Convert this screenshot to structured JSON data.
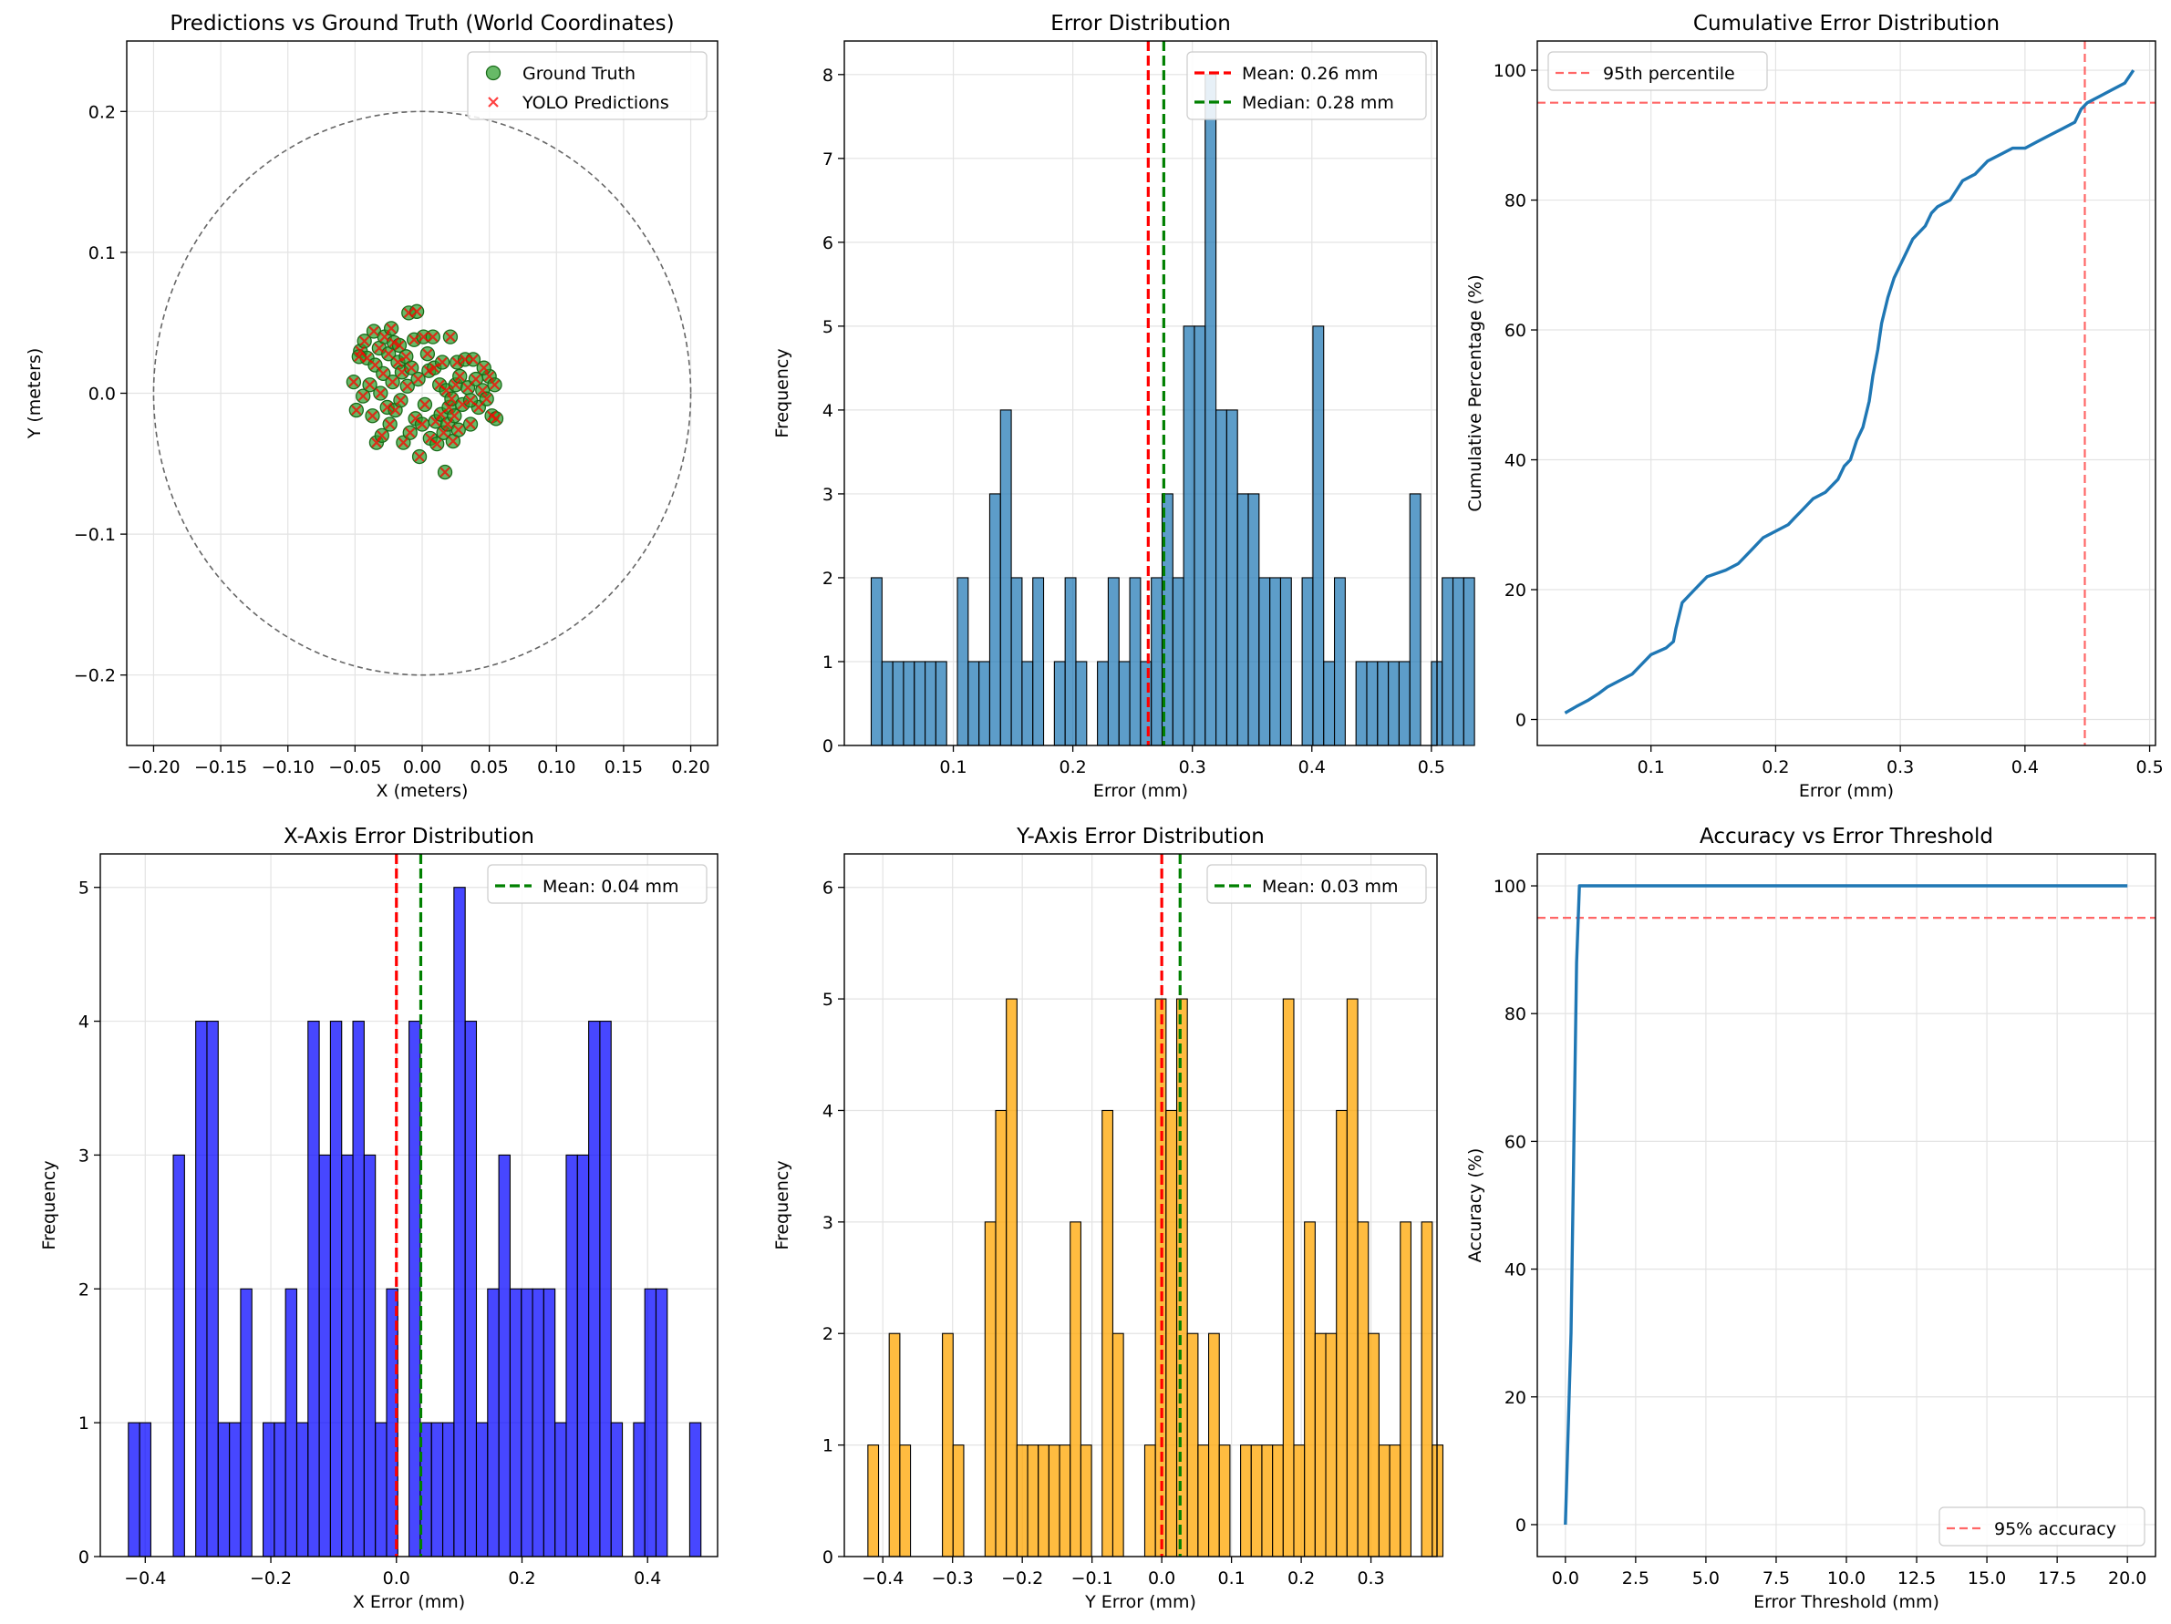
{
  "colors": {
    "gt": "#2ca02c",
    "pred": "#ff0000",
    "hist_err": "#1f77b4",
    "hist_x": "#0000ff",
    "hist_y": "#ffa500",
    "line": "#1f77b4",
    "mean": "#ff0000",
    "median": "#008000",
    "ref": "#ff6666",
    "circle": "#666666"
  },
  "chart_data": [
    {
      "type": "scatter",
      "title": "Predictions vs Ground Truth (World Coordinates)",
      "xlabel": "X (meters)",
      "ylabel": "Y (meters)",
      "xlim": [
        -0.22,
        0.22
      ],
      "ylim": [
        -0.25,
        0.25
      ],
      "xticks": [
        -0.2,
        -0.15,
        -0.1,
        -0.05,
        0.0,
        0.05,
        0.1,
        0.15,
        0.2
      ],
      "xtick_labels": [
        "−0.20",
        "−0.15",
        "−0.10",
        "−0.05",
        "0.00",
        "0.05",
        "0.10",
        "0.15",
        "0.20"
      ],
      "yticks": [
        -0.2,
        -0.1,
        0.0,
        0.1,
        0.2
      ],
      "ytick_labels": [
        "−0.2",
        "−0.1",
        "0.0",
        "0.1",
        "0.2"
      ],
      "grid": true,
      "legend_position": "upper right",
      "circle_radius": 0.2,
      "series": [
        {
          "name": "Ground Truth",
          "marker": "circle"
        },
        {
          "name": "YOLO Predictions",
          "marker": "x"
        }
      ],
      "points": [
        [
          -0.051,
          0.008
        ],
        [
          -0.049,
          -0.012
        ],
        [
          -0.046,
          0.03
        ],
        [
          -0.044,
          -0.002
        ],
        [
          -0.043,
          0.037
        ],
        [
          -0.041,
          0.025
        ],
        [
          -0.039,
          0.006
        ],
        [
          -0.037,
          -0.016
        ],
        [
          -0.036,
          0.044
        ],
        [
          -0.035,
          0.02
        ],
        [
          -0.034,
          -0.035
        ],
        [
          -0.032,
          0.032
        ],
        [
          -0.031,
          0.0
        ],
        [
          -0.03,
          -0.03
        ],
        [
          -0.029,
          0.014
        ],
        [
          -0.028,
          0.04
        ],
        [
          -0.026,
          -0.01
        ],
        [
          -0.025,
          0.028
        ],
        [
          -0.024,
          -0.022
        ],
        [
          -0.022,
          0.008
        ],
        [
          -0.021,
          0.036
        ],
        [
          -0.02,
          -0.012
        ],
        [
          -0.018,
          0.022
        ],
        [
          -0.017,
          0.034
        ],
        [
          -0.016,
          -0.005
        ],
        [
          -0.015,
          0.015
        ],
        [
          -0.014,
          -0.035
        ],
        [
          -0.012,
          0.026
        ],
        [
          -0.011,
          0.005
        ],
        [
          -0.01,
          0.057
        ],
        [
          -0.009,
          -0.028
        ],
        [
          -0.008,
          0.018
        ],
        [
          -0.006,
          0.038
        ],
        [
          -0.005,
          -0.018
        ],
        [
          -0.004,
          0.058
        ],
        [
          -0.003,
          0.01
        ],
        [
          -0.002,
          -0.045
        ],
        [
          0.0,
          -0.022
        ],
        [
          0.001,
          0.04
        ],
        [
          0.002,
          -0.008
        ],
        [
          0.004,
          0.028
        ],
        [
          0.005,
          0.016
        ],
        [
          0.006,
          -0.032
        ],
        [
          0.008,
          0.04
        ],
        [
          0.009,
          0.018
        ],
        [
          0.01,
          -0.02
        ],
        [
          0.011,
          -0.036
        ],
        [
          0.013,
          0.006
        ],
        [
          0.014,
          -0.015
        ],
        [
          0.015,
          0.022
        ],
        [
          0.016,
          -0.028
        ],
        [
          0.017,
          -0.056
        ],
        [
          0.018,
          0.002
        ],
        [
          0.019,
          -0.022
        ],
        [
          0.02,
          -0.01
        ],
        [
          0.021,
          0.04
        ],
        [
          0.022,
          -0.004
        ],
        [
          0.023,
          -0.034
        ],
        [
          0.024,
          -0.016
        ],
        [
          0.025,
          0.006
        ],
        [
          0.026,
          0.022
        ],
        [
          0.027,
          -0.026
        ],
        [
          0.028,
          0.012
        ],
        [
          0.03,
          -0.008
        ],
        [
          0.032,
          0.024
        ],
        [
          0.034,
          0.004
        ],
        [
          0.036,
          -0.022
        ],
        [
          0.038,
          0.024
        ],
        [
          0.04,
          0.01
        ],
        [
          0.042,
          -0.01
        ],
        [
          0.045,
          0.002
        ],
        [
          0.048,
          -0.004
        ],
        [
          0.05,
          0.012
        ],
        [
          0.052,
          -0.016
        ],
        [
          0.054,
          0.006
        ],
        [
          0.055,
          -0.018
        ],
        [
          0.046,
          0.018
        ],
        [
          -0.047,
          0.026
        ],
        [
          -0.023,
          0.046
        ],
        [
          0.036,
          -0.005
        ]
      ]
    },
    {
      "type": "bar",
      "title": "Error Distribution",
      "xlabel": "Error (mm)",
      "ylabel": "Frequency",
      "xlim": [
        0.0088,
        0.5047
      ],
      "ylim": [
        0,
        8.4
      ],
      "xticks": [
        0.1,
        0.2,
        0.3,
        0.4,
        0.5
      ],
      "xtick_labels": [
        "0.1",
        "0.2",
        "0.3",
        "0.4",
        "0.5"
      ],
      "yticks": [
        0,
        1,
        2,
        3,
        4,
        5,
        6,
        7,
        8
      ],
      "ytick_labels": [
        "0",
        "1",
        "2",
        "3",
        "4",
        "5",
        "6",
        "7",
        "8"
      ],
      "grid": true,
      "legend_position": "upper right",
      "bin_start": 0.0313,
      "bin_width": 0.009014,
      "counts": [
        2,
        1,
        1,
        1,
        1,
        1,
        1,
        0,
        2,
        1,
        1,
        3,
        4,
        2,
        1,
        2,
        0,
        1,
        2,
        1,
        0,
        1,
        2,
        1,
        2,
        1,
        2,
        3,
        2,
        5,
        5,
        8,
        4,
        4,
        3,
        3,
        2,
        2,
        2,
        0,
        2,
        5,
        1,
        2,
        0,
        1,
        1,
        1,
        1,
        1,
        3,
        0,
        1,
        2,
        2,
        2
      ],
      "vlines": [
        {
          "x": 0.2631,
          "label": "Mean: 0.26 mm",
          "color": "mean"
        },
        {
          "x": 0.2761,
          "label": "Median: 0.28 mm",
          "color": "median"
        }
      ]
    },
    {
      "type": "line",
      "title": "Cumulative Error Distribution",
      "xlabel": "Error (mm)",
      "ylabel": "Cumulative Percentage (%)",
      "xlim": [
        0.0088,
        0.5047
      ],
      "ylim": [
        -4,
        104.5
      ],
      "xticks": [
        0.1,
        0.2,
        0.3,
        0.4,
        0.5
      ],
      "xtick_labels": [
        "0.1",
        "0.2",
        "0.3",
        "0.4",
        "0.5"
      ],
      "yticks": [
        0,
        20,
        40,
        60,
        80,
        100
      ],
      "ytick_labels": [
        "0",
        "20",
        "40",
        "60",
        "80",
        "100"
      ],
      "grid": true,
      "legend_position": "upper left",
      "series": [
        {
          "x": [
            0.031,
            0.04,
            0.05,
            0.058,
            0.065,
            0.075,
            0.085,
            0.09,
            0.1,
            0.112,
            0.118,
            0.12,
            0.125,
            0.135,
            0.145,
            0.16,
            0.17,
            0.18,
            0.19,
            0.2,
            0.21,
            0.215,
            0.22,
            0.23,
            0.24,
            0.25,
            0.255,
            0.26,
            0.265,
            0.27,
            0.275,
            0.278,
            0.282,
            0.285,
            0.29,
            0.295,
            0.3,
            0.305,
            0.31,
            0.32,
            0.325,
            0.33,
            0.34,
            0.35,
            0.36,
            0.365,
            0.37,
            0.38,
            0.39,
            0.4,
            0.41,
            0.42,
            0.43,
            0.44,
            0.445,
            0.45,
            0.46,
            0.47,
            0.48,
            0.487
          ],
          "y": [
            1,
            2,
            3,
            4,
            5,
            6,
            7,
            8,
            10,
            11,
            12,
            14,
            18,
            20,
            22,
            23,
            24,
            26,
            28,
            29,
            30,
            31,
            32,
            34,
            35,
            37,
            39,
            40,
            43,
            45,
            49,
            53,
            57,
            61,
            65,
            68,
            70,
            72,
            74,
            76,
            78,
            79,
            80,
            83,
            84,
            85,
            86,
            87,
            88,
            88,
            89,
            90,
            91,
            92,
            94,
            95,
            96,
            97,
            98,
            100
          ]
        }
      ],
      "hlines": [
        {
          "y": 95,
          "label": "95th percentile"
        }
      ],
      "vlines": [
        {
          "x": 0.448
        }
      ]
    },
    {
      "type": "bar",
      "title": "X-Axis Error Distribution",
      "xlabel": "X Error (mm)",
      "ylabel": "Frequency",
      "xlim": [
        -0.4716,
        0.5115
      ],
      "ylim": [
        0,
        5.25
      ],
      "xticks": [
        -0.4,
        -0.2,
        0.0,
        0.2,
        0.4
      ],
      "xtick_labels": [
        "−0.4",
        "−0.2",
        "0.0",
        "0.2",
        "0.4"
      ],
      "yticks": [
        0,
        1,
        2,
        3,
        4,
        5
      ],
      "ytick_labels": [
        "0",
        "1",
        "2",
        "3",
        "4",
        "5"
      ],
      "grid": true,
      "legend_position": "upper right",
      "bin_start": -0.4269,
      "bin_width": 0.01788,
      "counts": [
        1,
        1,
        0,
        0,
        3,
        0,
        4,
        4,
        1,
        1,
        2,
        0,
        1,
        1,
        2,
        1,
        4,
        3,
        4,
        3,
        4,
        3,
        1,
        2,
        0,
        4,
        1,
        1,
        1,
        5,
        4,
        1,
        2,
        3,
        2,
        2,
        2,
        2,
        1,
        3,
        3,
        4,
        4,
        1,
        0,
        1,
        2,
        2,
        0,
        0,
        1
      ],
      "vlines": [
        {
          "x": 0.0,
          "color": "mean"
        },
        {
          "x": 0.0388,
          "label": "Mean: 0.04 mm",
          "color": "median"
        }
      ]
    },
    {
      "type": "bar",
      "title": "Y-Axis Error Distribution",
      "xlabel": "Y Error (mm)",
      "ylabel": "Frequency",
      "xlim": [
        -0.4552,
        0.3947
      ],
      "ylim": [
        0,
        6.3
      ],
      "xticks": [
        -0.4,
        -0.3,
        -0.2,
        -0.1,
        0.0,
        0.1,
        0.2,
        0.3
      ],
      "xtick_labels": [
        "−0.4",
        "−0.3",
        "−0.2",
        "−0.1",
        "0.0",
        "0.1",
        "0.2",
        "0.3"
      ],
      "yticks": [
        0,
        1,
        2,
        3,
        4,
        5,
        6
      ],
      "ytick_labels": [
        "0",
        "1",
        "2",
        "3",
        "4",
        "5",
        "6"
      ],
      "grid": true,
      "legend_position": "upper right",
      "bin_start": -0.4214,
      "bin_width": 0.01527,
      "counts": [
        1,
        0,
        2,
        1,
        0,
        0,
        0,
        2,
        1,
        0,
        0,
        3,
        4,
        5,
        1,
        1,
        1,
        1,
        1,
        3,
        1,
        0,
        4,
        2,
        0,
        0,
        1,
        5,
        4,
        5,
        2,
        1,
        2,
        1,
        0,
        1,
        1,
        1,
        1,
        5,
        1,
        3,
        2,
        2,
        4,
        5,
        3,
        2,
        1,
        1,
        3,
        0,
        3,
        1
      ],
      "vlines": [
        {
          "x": 0.0,
          "color": "mean"
        },
        {
          "x": 0.0263,
          "label": "Mean: 0.03 mm",
          "color": "median"
        }
      ]
    },
    {
      "type": "line",
      "title": "Accuracy vs Error Threshold",
      "xlabel": "Error Threshold (mm)",
      "ylabel": "Accuracy (%)",
      "xlim": [
        -1.0,
        21.0
      ],
      "ylim": [
        -5,
        105
      ],
      "xticks": [
        0.0,
        2.5,
        5.0,
        7.5,
        10.0,
        12.5,
        15.0,
        17.5,
        20.0
      ],
      "xtick_labels": [
        "0.0",
        "2.5",
        "5.0",
        "7.5",
        "10.0",
        "12.5",
        "15.0",
        "17.5",
        "20.0"
      ],
      "yticks": [
        0,
        20,
        40,
        60,
        80,
        100
      ],
      "ytick_labels": [
        "0",
        "20",
        "40",
        "60",
        "80",
        "100"
      ],
      "grid": true,
      "legend_position": "lower right",
      "series": [
        {
          "x": [
            0.0,
            0.2,
            0.4,
            0.5,
            20.0
          ],
          "y": [
            0,
            30,
            88,
            100,
            100
          ]
        }
      ],
      "hlines": [
        {
          "y": 95,
          "label": "95% accuracy"
        }
      ]
    }
  ]
}
